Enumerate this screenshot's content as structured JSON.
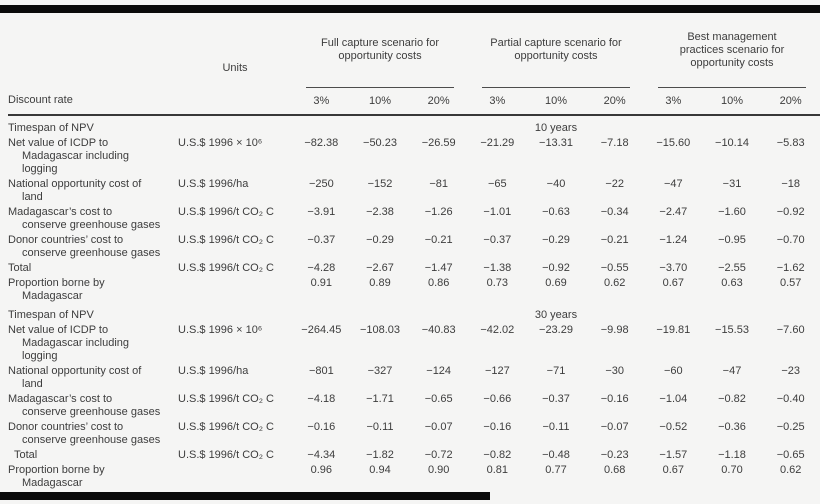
{
  "colors": {
    "background": "#f5f5f4",
    "text": "#3d3d3d",
    "thin_rule": "#4c4c4c",
    "heavy_rule": "#383838",
    "black_bar": "#0a0a0a"
  },
  "table": {
    "header": {
      "discount_rate_label": "Discount rate",
      "units_label": "Units",
      "groups": [
        {
          "label": "Full capture scenario for\nopportunity costs",
          "rates": [
            "3%",
            "10%",
            "20%"
          ]
        },
        {
          "label": "Partial capture scenario for\nopportunity costs",
          "rates": [
            "3%",
            "10%",
            "20%"
          ]
        },
        {
          "label": "Best management\npractices scenario for\nopportunity costs",
          "rates": [
            "3%",
            "10%",
            "20%"
          ]
        }
      ]
    },
    "sections": [
      {
        "timespan_label": "Timespan of NPV",
        "timespan_value": "10 years",
        "rows": [
          {
            "label": "Net value of ICDP to\nMadagascar including\nlogging",
            "units": "U.S.$ 1996 × 10⁶",
            "values": [
              "−82.38",
              "−50.23",
              "−26.59",
              "−21.29",
              "−13.31",
              "−7.18",
              "−15.60",
              "−10.14",
              "−5.83"
            ]
          },
          {
            "label": "National opportunity cost of\nland",
            "units": "U.S.$ 1996/ha",
            "values": [
              "−250",
              "−152",
              "−81",
              "−65",
              "−40",
              "−22",
              "−47",
              "−31",
              "−18"
            ]
          },
          {
            "label": "Madagascar’s cost to\nconserve greenhouse gases",
            "units": "U.S.$ 1996/t CO₂ C",
            "values": [
              "−3.91",
              "−2.38",
              "−1.26",
              "−1.01",
              "−0.63",
              "−0.34",
              "−2.47",
              "−1.60",
              "−0.92"
            ]
          },
          {
            "label": "Donor countries’ cost to\nconserve greenhouse gases",
            "units": "U.S.$ 1996/t CO₂ C",
            "values": [
              "−0.37",
              "−0.29",
              "−0.21",
              "−0.37",
              "−0.29",
              "−0.21",
              "−1.24",
              "−0.95",
              "−0.70"
            ]
          },
          {
            "label": "Total",
            "units": "U.S.$ 1996/t CO₂ C",
            "values": [
              "−4.28",
              "−2.67",
              "−1.47",
              "−1.38",
              "−0.92",
              "−0.55",
              "−3.70",
              "−2.55",
              "−1.62"
            ]
          },
          {
            "label": "Proportion borne by\nMadagascar",
            "units": "",
            "values": [
              "0.91",
              "0.89",
              "0.86",
              "0.73",
              "0.69",
              "0.62",
              "0.67",
              "0.63",
              "0.57"
            ]
          }
        ]
      },
      {
        "timespan_label": "Timespan of NPV",
        "timespan_value": "30 years",
        "rows": [
          {
            "label": "Net value of ICDP to\nMadagascar including\nlogging",
            "units": "U.S.$ 1996 × 10⁶",
            "values": [
              "−264.45",
              "−108.03",
              "−40.83",
              "−42.02",
              "−23.29",
              "−9.98",
              "−19.81",
              "−15.53",
              "−7.60"
            ]
          },
          {
            "label": "National opportunity cost of\nland",
            "units": "U.S.$ 1996/ha",
            "values": [
              "−801",
              "−327",
              "−124",
              "−127",
              "−71",
              "−30",
              "−60",
              "−47",
              "−23"
            ]
          },
          {
            "label": "Madagascar’s cost to\nconserve greenhouse gases",
            "units": "U.S.$ 1996/t CO₂ C",
            "values": [
              "−4.18",
              "−1.71",
              "−0.65",
              "−0.66",
              "−0.37",
              "−0.16",
              "−1.04",
              "−0.82",
              "−0.40"
            ]
          },
          {
            "label": "Donor countries’ cost to\nconserve greenhouse gases",
            "units": "U.S.$ 1996/t CO₂ C",
            "values": [
              "−0.16",
              "−0.11",
              "−0.07",
              "−0.16",
              "−0.11",
              "−0.07",
              "−0.52",
              "−0.36",
              "−0.25"
            ]
          },
          {
            "label": "Total",
            "units": "U.S.$ 1996/t CO₂ C",
            "indent": true,
            "values": [
              "−4.34",
              "−1.82",
              "−0.72",
              "−0.82",
              "−0.48",
              "−0.23",
              "−1.57",
              "−1.18",
              "−0.65"
            ]
          },
          {
            "label": "Proportion borne by\nMadagascar",
            "units": "",
            "values": [
              "0.96",
              "0.94",
              "0.90",
              "0.81",
              "0.77",
              "0.68",
              "0.67",
              "0.70",
              "0.62"
            ]
          }
        ]
      }
    ]
  }
}
